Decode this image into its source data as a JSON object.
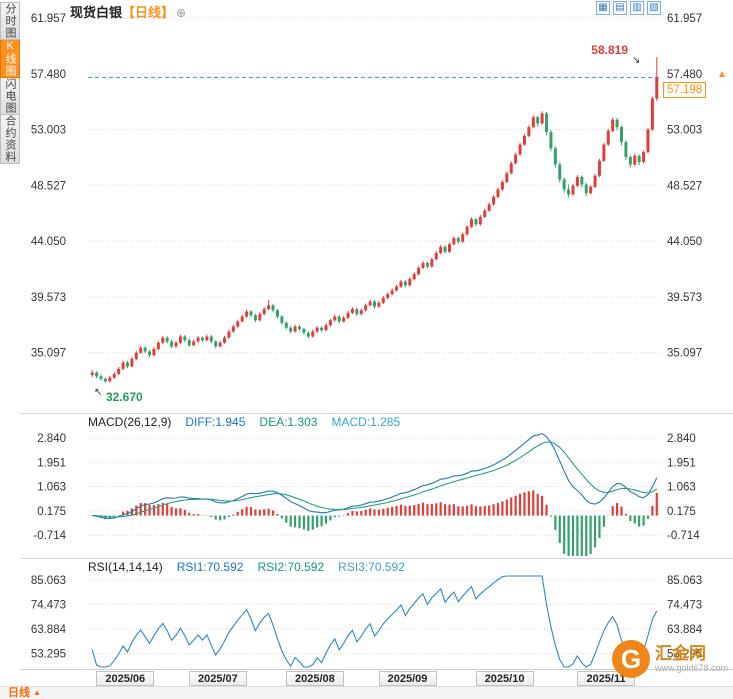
{
  "sidebar": {
    "tabs": [
      {
        "label": "分时图",
        "active": false
      },
      {
        "label": "K线图",
        "active": true
      },
      {
        "label": "闪电图",
        "active": false
      },
      {
        "label": "合约资料",
        "active": false
      }
    ]
  },
  "header": {
    "title": "现货白银",
    "period_tag": "【日线】",
    "settings_glyph": "⊕"
  },
  "toolbar": {
    "icons": [
      {
        "name": "grid-layout-icon",
        "glyph": "▦"
      },
      {
        "name": "split-layout-icon",
        "glyph": "▤"
      },
      {
        "name": "columns-layout-icon",
        "glyph": "▥"
      },
      {
        "name": "pattern-layout-icon",
        "glyph": "▧"
      }
    ]
  },
  "price_tag": {
    "value": "57.198",
    "marker_glyph": "▲"
  },
  "macd_header": {
    "name": "MACD(26,12,9)",
    "diff": "DIFF:1.945",
    "dea": "DEA:1.303",
    "macd": "MACD:1.285"
  },
  "rsi_header": {
    "name": "RSI(14,14,14)",
    "rsi1": "RSI1:70.592",
    "rsi2": "RSI2:70.592",
    "rsi3": "RSI3:70.592"
  },
  "bottom_bar": {
    "period_label": "日线",
    "arrow_glyph": "▲"
  },
  "watermark": {
    "logo_letter": "G",
    "name": "汇金网",
    "url": "www.gold678.com"
  },
  "chart_data": {
    "type": "candlestick",
    "title": "现货白银 日线",
    "y_axis": {
      "ticks": [
        "61.957",
        "57.480",
        "53.003",
        "48.527",
        "44.050",
        "39.573",
        "35.097"
      ],
      "tick_values": [
        61.957,
        57.48,
        53.003,
        48.527,
        44.05,
        39.573,
        35.097
      ]
    },
    "x_axis": {
      "labels": [
        "2025/06",
        "2025/07",
        "2025/08",
        "2025/09",
        "2025/10",
        "2025/11"
      ],
      "month_start_indices": [
        5,
        26,
        48,
        69,
        91,
        114
      ]
    },
    "last_price": 57.198,
    "period_high_label": "58.819",
    "period_low_label": "32.670",
    "high_arrow_glyph": "↘",
    "low_arrow_glyph": "↖",
    "candles_ohlc": [
      [
        33.3,
        33.7,
        33.15,
        33.5
      ],
      [
        33.5,
        33.62,
        33.05,
        33.2
      ],
      [
        33.2,
        33.35,
        32.85,
        33.0
      ],
      [
        33.0,
        33.12,
        32.67,
        32.8
      ],
      [
        32.8,
        33.25,
        32.72,
        33.1
      ],
      [
        33.1,
        33.55,
        33.0,
        33.4
      ],
      [
        33.4,
        33.95,
        33.3,
        33.8
      ],
      [
        33.8,
        34.45,
        33.7,
        34.3
      ],
      [
        34.3,
        34.42,
        33.85,
        34.0
      ],
      [
        34.0,
        34.75,
        33.92,
        34.6
      ],
      [
        34.6,
        35.25,
        34.5,
        35.1
      ],
      [
        35.1,
        35.65,
        35.0,
        35.5
      ],
      [
        35.5,
        35.62,
        35.05,
        35.2
      ],
      [
        35.2,
        35.32,
        34.75,
        34.9
      ],
      [
        34.9,
        35.55,
        34.82,
        35.4
      ],
      [
        35.4,
        36.05,
        35.3,
        35.9
      ],
      [
        35.9,
        36.45,
        35.8,
        36.3
      ],
      [
        36.3,
        36.42,
        35.85,
        36.0
      ],
      [
        36.0,
        36.12,
        35.45,
        35.6
      ],
      [
        35.6,
        36.05,
        35.5,
        35.9
      ],
      [
        35.9,
        36.55,
        35.8,
        36.4
      ],
      [
        36.4,
        36.52,
        35.95,
        36.1
      ],
      [
        36.1,
        36.25,
        35.55,
        35.7
      ],
      [
        35.7,
        36.15,
        35.6,
        36.0
      ],
      [
        36.0,
        36.45,
        35.9,
        36.3
      ],
      [
        36.3,
        36.42,
        35.95,
        36.1
      ],
      [
        36.1,
        36.55,
        36.0,
        36.4
      ],
      [
        36.4,
        36.52,
        35.85,
        36.0
      ],
      [
        36.0,
        36.1,
        35.45,
        35.6
      ],
      [
        35.6,
        36.05,
        35.52,
        35.9
      ],
      [
        35.9,
        36.45,
        35.82,
        36.3
      ],
      [
        36.3,
        36.95,
        36.22,
        36.8
      ],
      [
        36.8,
        37.35,
        36.7,
        37.2
      ],
      [
        37.2,
        37.75,
        37.1,
        37.6
      ],
      [
        37.6,
        38.15,
        37.52,
        38.0
      ],
      [
        38.0,
        38.55,
        37.9,
        38.4
      ],
      [
        38.4,
        38.52,
        37.95,
        38.1
      ],
      [
        38.1,
        38.22,
        37.55,
        37.7
      ],
      [
        37.7,
        38.35,
        37.62,
        38.2
      ],
      [
        38.2,
        38.75,
        38.1,
        38.6
      ],
      [
        38.6,
        39.35,
        38.52,
        38.9
      ],
      [
        38.9,
        39.02,
        38.35,
        38.5
      ],
      [
        38.5,
        38.62,
        37.85,
        38.0
      ],
      [
        38.0,
        38.12,
        37.35,
        37.5
      ],
      [
        37.5,
        37.62,
        36.95,
        37.1
      ],
      [
        37.1,
        37.25,
        36.65,
        36.8
      ],
      [
        36.8,
        37.35,
        36.72,
        37.2
      ],
      [
        37.2,
        37.32,
        36.85,
        37.0
      ],
      [
        37.0,
        37.1,
        36.55,
        36.7
      ],
      [
        36.7,
        36.82,
        36.25,
        36.4
      ],
      [
        36.4,
        36.95,
        36.32,
        36.8
      ],
      [
        36.8,
        37.25,
        36.7,
        37.1
      ],
      [
        37.1,
        37.22,
        36.75,
        36.9
      ],
      [
        36.9,
        37.45,
        36.82,
        37.3
      ],
      [
        37.3,
        37.85,
        37.2,
        37.7
      ],
      [
        37.7,
        38.15,
        37.6,
        38.0
      ],
      [
        38.0,
        38.12,
        37.45,
        37.6
      ],
      [
        37.6,
        38.05,
        37.52,
        37.9
      ],
      [
        37.9,
        38.45,
        37.8,
        38.3
      ],
      [
        38.3,
        38.75,
        38.2,
        38.6
      ],
      [
        38.6,
        38.72,
        38.05,
        38.2
      ],
      [
        38.2,
        38.65,
        38.1,
        38.5
      ],
      [
        38.5,
        39.05,
        38.4,
        38.9
      ],
      [
        38.9,
        39.35,
        38.8,
        39.2
      ],
      [
        39.2,
        39.32,
        38.65,
        38.8
      ],
      [
        38.8,
        39.25,
        38.7,
        39.1
      ],
      [
        39.1,
        39.65,
        39.0,
        39.5
      ],
      [
        39.5,
        39.95,
        39.4,
        39.8
      ],
      [
        39.8,
        40.25,
        39.7,
        40.1
      ],
      [
        40.1,
        40.55,
        40.0,
        40.4
      ],
      [
        40.4,
        40.95,
        40.3,
        40.8
      ],
      [
        40.8,
        40.92,
        40.35,
        40.5
      ],
      [
        40.5,
        41.15,
        40.42,
        41.0
      ],
      [
        41.0,
        41.55,
        40.9,
        41.4
      ],
      [
        41.4,
        42.05,
        41.3,
        41.9
      ],
      [
        41.9,
        42.45,
        41.8,
        42.3
      ],
      [
        42.3,
        42.42,
        41.85,
        42.0
      ],
      [
        42.0,
        42.75,
        41.92,
        42.6
      ],
      [
        42.6,
        43.25,
        42.5,
        43.1
      ],
      [
        43.1,
        43.75,
        43.0,
        43.6
      ],
      [
        43.6,
        43.72,
        43.05,
        43.2
      ],
      [
        43.2,
        43.95,
        43.1,
        43.8
      ],
      [
        43.8,
        44.45,
        43.7,
        44.3
      ],
      [
        44.3,
        44.42,
        43.85,
        44.0
      ],
      [
        44.0,
        44.75,
        43.92,
        44.6
      ],
      [
        44.6,
        45.35,
        44.5,
        45.2
      ],
      [
        45.2,
        45.95,
        45.1,
        45.8
      ],
      [
        45.8,
        45.92,
        45.25,
        45.4
      ],
      [
        45.4,
        46.15,
        45.3,
        46.0
      ],
      [
        46.0,
        46.65,
        45.9,
        46.5
      ],
      [
        46.5,
        47.15,
        46.4,
        47.0
      ],
      [
        47.0,
        47.75,
        46.9,
        47.6
      ],
      [
        47.6,
        48.35,
        47.5,
        48.2
      ],
      [
        48.2,
        48.95,
        48.1,
        48.8
      ],
      [
        48.8,
        49.65,
        48.7,
        49.5
      ],
      [
        49.5,
        50.45,
        49.4,
        50.3
      ],
      [
        50.3,
        51.15,
        50.2,
        51.0
      ],
      [
        51.0,
        51.95,
        50.9,
        51.8
      ],
      [
        51.8,
        52.65,
        51.7,
        52.5
      ],
      [
        52.5,
        53.35,
        52.4,
        53.2
      ],
      [
        53.2,
        54.15,
        53.1,
        54.0
      ],
      [
        54.0,
        54.12,
        53.25,
        53.5
      ],
      [
        53.5,
        54.48,
        53.4,
        54.3
      ],
      [
        54.3,
        54.42,
        52.55,
        52.8
      ],
      [
        52.8,
        52.95,
        51.25,
        51.5
      ],
      [
        51.5,
        51.65,
        49.95,
        50.2
      ],
      [
        50.2,
        50.35,
        48.75,
        49.0
      ],
      [
        49.0,
        49.15,
        47.95,
        48.2
      ],
      [
        48.2,
        48.6,
        47.55,
        47.8
      ],
      [
        47.8,
        48.65,
        47.7,
        48.5
      ],
      [
        48.5,
        49.35,
        48.4,
        49.2
      ],
      [
        49.2,
        49.32,
        48.35,
        48.6
      ],
      [
        48.6,
        48.75,
        47.65,
        47.9
      ],
      [
        47.9,
        48.55,
        47.8,
        48.4
      ],
      [
        48.4,
        49.45,
        48.3,
        49.3
      ],
      [
        49.3,
        50.65,
        49.2,
        50.5
      ],
      [
        50.5,
        51.95,
        50.4,
        51.8
      ],
      [
        51.8,
        53.05,
        51.7,
        52.9
      ],
      [
        52.9,
        53.95,
        52.8,
        53.8
      ],
      [
        53.8,
        53.92,
        52.95,
        53.2
      ],
      [
        53.2,
        53.32,
        51.75,
        52.0
      ],
      [
        52.0,
        52.15,
        50.55,
        50.8
      ],
      [
        50.8,
        50.95,
        49.95,
        50.2
      ],
      [
        50.2,
        51.05,
        50.1,
        50.9
      ],
      [
        50.9,
        51.02,
        50.15,
        50.4
      ],
      [
        50.4,
        51.35,
        50.3,
        51.2
      ],
      [
        51.2,
        53.15,
        51.1,
        53.0
      ],
      [
        53.0,
        55.65,
        52.9,
        55.5
      ],
      [
        55.5,
        58.819,
        55.3,
        57.198
      ]
    ],
    "macd": {
      "ticks": [
        "2.840",
        "1.951",
        "1.063",
        "0.175",
        "-0.714"
      ],
      "tick_values": [
        2.84,
        1.951,
        1.063,
        0.175,
        -0.714
      ],
      "fast": 12,
      "slow": 26,
      "signal": 9,
      "diff": 1.945,
      "dea": 1.303,
      "macd": 1.285
    },
    "rsi": {
      "ticks": [
        "85.063",
        "74.473",
        "63.884",
        "53.295"
      ],
      "tick_values": [
        85.063,
        74.473,
        63.884,
        53.295
      ],
      "period": 14,
      "rsi1": 70.592,
      "rsi2": 70.592,
      "rsi3": 70.592
    },
    "colors": {
      "up": "#df3e3a",
      "down": "#35a06b",
      "grid": "#d8d8d8",
      "dashed_price_line": "#3a8fc0",
      "diff_line": "#2278b5",
      "dea_line": "#27a17c",
      "rsi_line": "#2e86c1"
    }
  }
}
